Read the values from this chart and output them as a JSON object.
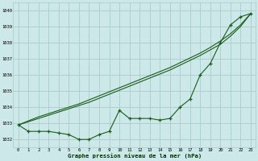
{
  "x": [
    0,
    1,
    2,
    3,
    4,
    5,
    6,
    7,
    8,
    9,
    10,
    11,
    12,
    13,
    14,
    15,
    16,
    17,
    18,
    19,
    20,
    21,
    22,
    23
  ],
  "line_measured": [
    1032.9,
    1032.5,
    1032.5,
    1032.5,
    1032.4,
    1032.3,
    1032.0,
    1032.0,
    1032.3,
    1032.5,
    1033.8,
    1033.3,
    1033.3,
    1033.3,
    1033.2,
    1033.3,
    1034.0,
    1034.5,
    1036.0,
    1036.7,
    1038.0,
    1039.1,
    1039.6,
    1039.8
  ],
  "line_smooth1": [
    1032.9,
    1033.1,
    1033.3,
    1033.5,
    1033.7,
    1033.9,
    1034.1,
    1034.3,
    1034.55,
    1034.8,
    1035.05,
    1035.3,
    1035.55,
    1035.8,
    1036.05,
    1036.3,
    1036.6,
    1036.9,
    1037.2,
    1037.55,
    1037.9,
    1038.4,
    1039.0,
    1039.8
  ],
  "line_smooth2": [
    1032.9,
    1033.15,
    1033.4,
    1033.6,
    1033.8,
    1034.0,
    1034.2,
    1034.45,
    1034.7,
    1034.95,
    1035.2,
    1035.45,
    1035.7,
    1035.95,
    1036.2,
    1036.45,
    1036.75,
    1037.05,
    1037.35,
    1037.7,
    1038.1,
    1038.55,
    1039.1,
    1039.8
  ],
  "bg_color": "#cce8e8",
  "grid_color": "#aacccc",
  "line_color": "#1a5c1a",
  "xlabel": "Graphe pression niveau de la mer (hPa)",
  "ylim": [
    1031.5,
    1040.5
  ],
  "xlim": [
    -0.5,
    23.5
  ],
  "yticks": [
    1032,
    1033,
    1034,
    1035,
    1036,
    1037,
    1038,
    1039,
    1040
  ],
  "xticks": [
    0,
    1,
    2,
    3,
    4,
    5,
    6,
    7,
    8,
    9,
    10,
    11,
    12,
    13,
    14,
    15,
    16,
    17,
    18,
    19,
    20,
    21,
    22,
    23
  ]
}
